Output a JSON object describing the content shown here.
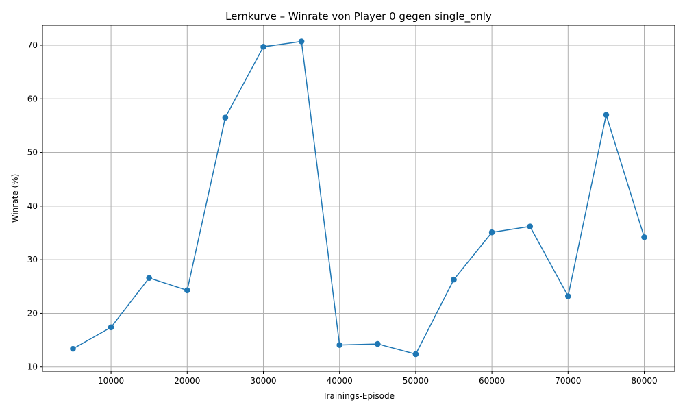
{
  "chart_data": {
    "type": "line",
    "title": "Lernkurve – Winrate von Player 0 gegen single_only",
    "xlabel": "Trainings-Episode",
    "ylabel": "Winrate (%)",
    "xlim": [
      1000,
      84000
    ],
    "ylim": [
      9.2,
      73.7
    ],
    "xticks": [
      10000,
      20000,
      30000,
      40000,
      50000,
      60000,
      70000,
      80000
    ],
    "yticks": [
      10,
      20,
      30,
      40,
      50,
      60,
      70
    ],
    "grid": true,
    "series": [
      {
        "color": "#1f77b4",
        "marker": "circle",
        "x": [
          5000,
          10000,
          15000,
          20000,
          25000,
          30000,
          35000,
          40000,
          45000,
          50000,
          55000,
          60000,
          65000,
          70000,
          75000,
          80000
        ],
        "y": [
          13.4,
          17.4,
          26.6,
          24.3,
          56.5,
          69.7,
          70.7,
          14.1,
          14.3,
          12.4,
          26.3,
          35.1,
          36.2,
          23.2,
          57.0,
          34.2
        ]
      }
    ]
  }
}
